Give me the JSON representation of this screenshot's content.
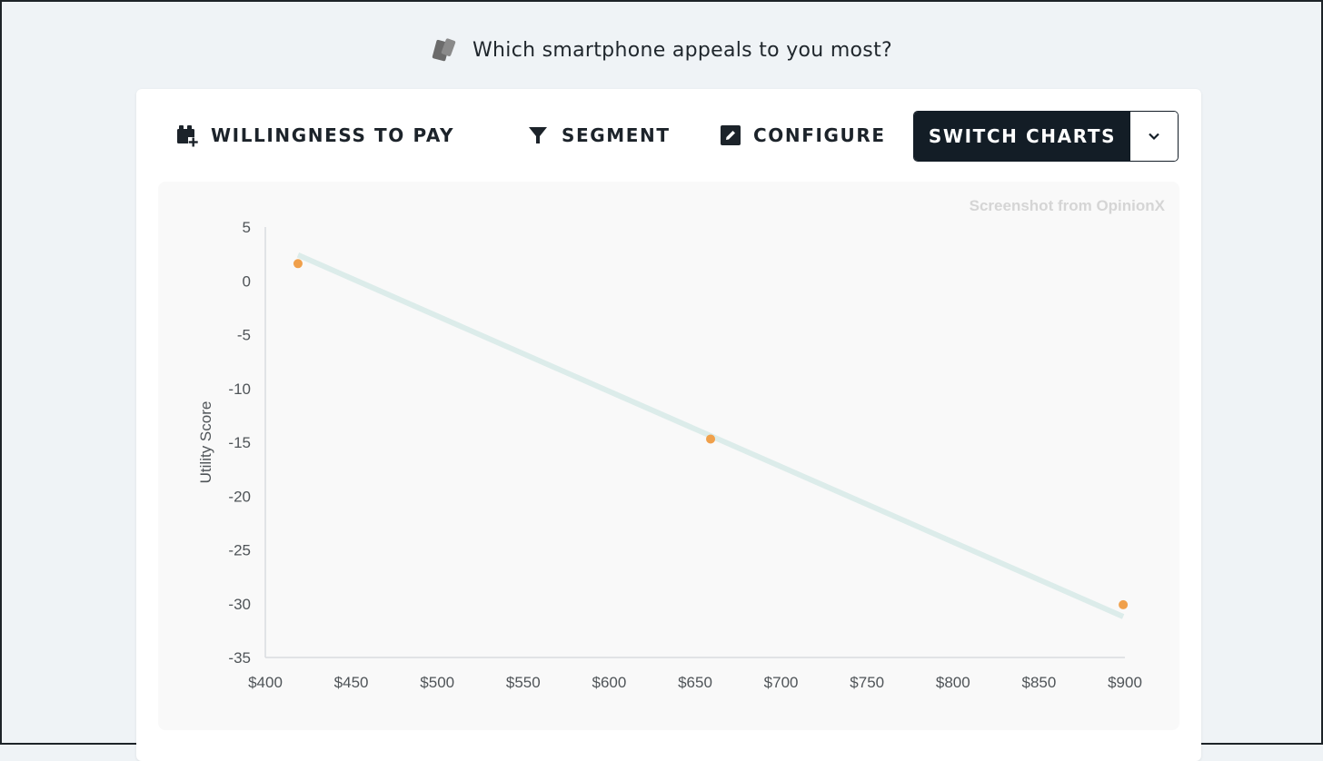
{
  "question": {
    "text": "Which smartphone appeals to you most?",
    "icon": "cards-icon"
  },
  "toolbar": {
    "willingness_label": "WILLINGNESS TO PAY",
    "segment_label": "SEGMENT",
    "configure_label": "CONFIGURE",
    "switch_label": "SWITCH CHARTS",
    "dropdown_icon": "chevron-down-icon"
  },
  "colors": {
    "accent_dark": "#131d26",
    "point": "#f0a04b",
    "trendline": "#dcecea"
  },
  "watermark": "Screenshot from OpinionX",
  "chart_data": {
    "type": "scatter",
    "xlabel": "",
    "ylabel": "Utility Score",
    "xlim": [
      400,
      900
    ],
    "ylim": [
      -35,
      5
    ],
    "x_ticks": [
      "$400",
      "$450",
      "$500",
      "$550",
      "$600",
      "$650",
      "$700",
      "$750",
      "$800",
      "$850",
      "$900"
    ],
    "y_ticks": [
      "5",
      "0",
      "-5",
      "-10",
      "-15",
      "-20",
      "-25",
      "-30",
      "-35"
    ],
    "grid": false,
    "points": [
      {
        "x": 419,
        "y": 1.6
      },
      {
        "x": 659,
        "y": -14.7
      },
      {
        "x": 899,
        "y": -30.1
      }
    ],
    "trendline": {
      "x": [
        419,
        899
      ],
      "y": [
        2.4,
        -31.2
      ]
    }
  }
}
